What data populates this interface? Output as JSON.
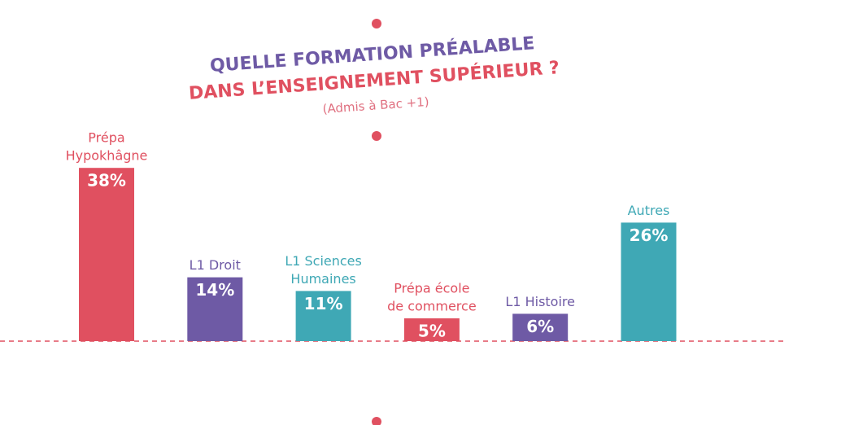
{
  "chart_data": {
    "type": "bar",
    "title": [
      "QUELLE FORMATION PRÉALABLE",
      "DANS L’ENSEIGNEMENT SUPÉRIEUR ?"
    ],
    "title_colors": [
      "#6e5aa5",
      "#e05060"
    ],
    "subtitle": "(Admis à Bac +1)",
    "categories": [
      [
        "Prépa",
        "Hypokhâgne"
      ],
      [
        "L1 Droit"
      ],
      [
        "L1 Sciences",
        "Humaines"
      ],
      [
        "Prépa école",
        "de commerce"
      ],
      [
        "L1 Histoire"
      ],
      [
        "Autres"
      ]
    ],
    "values": [
      38,
      14,
      11,
      5,
      6,
      26
    ],
    "value_labels": [
      "38%",
      "14%",
      "11%",
      "5%",
      "6%",
      "26%"
    ],
    "colors": [
      "#e05060",
      "#6e5aa5",
      "#3fa8b5",
      "#e05060",
      "#6e5aa5",
      "#3fa8b5"
    ]
  }
}
